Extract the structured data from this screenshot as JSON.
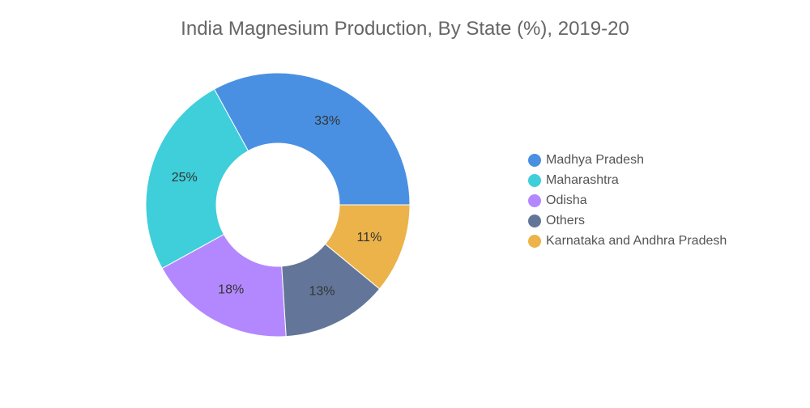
{
  "chart_data": {
    "type": "pie",
    "variant": "donut",
    "title": "India Magnesium Production, By State (%), 2019-20",
    "legend_position": "right",
    "slices": [
      {
        "label": "Madhya Pradesh",
        "value": 33,
        "display": "33%",
        "color": "#4a90e2"
      },
      {
        "label": "Maharashtra",
        "value": 25,
        "display": "25%",
        "color": "#3ecfda"
      },
      {
        "label": "Odisha",
        "value": 18,
        "display": "18%",
        "color": "#b388ff"
      },
      {
        "label": "Others",
        "value": 13,
        "display": "13%",
        "color": "#637699"
      },
      {
        "label": "Karnataka and Andhra Pradesh",
        "value": 11,
        "display": "11%",
        "color": "#ecb34a"
      }
    ]
  }
}
